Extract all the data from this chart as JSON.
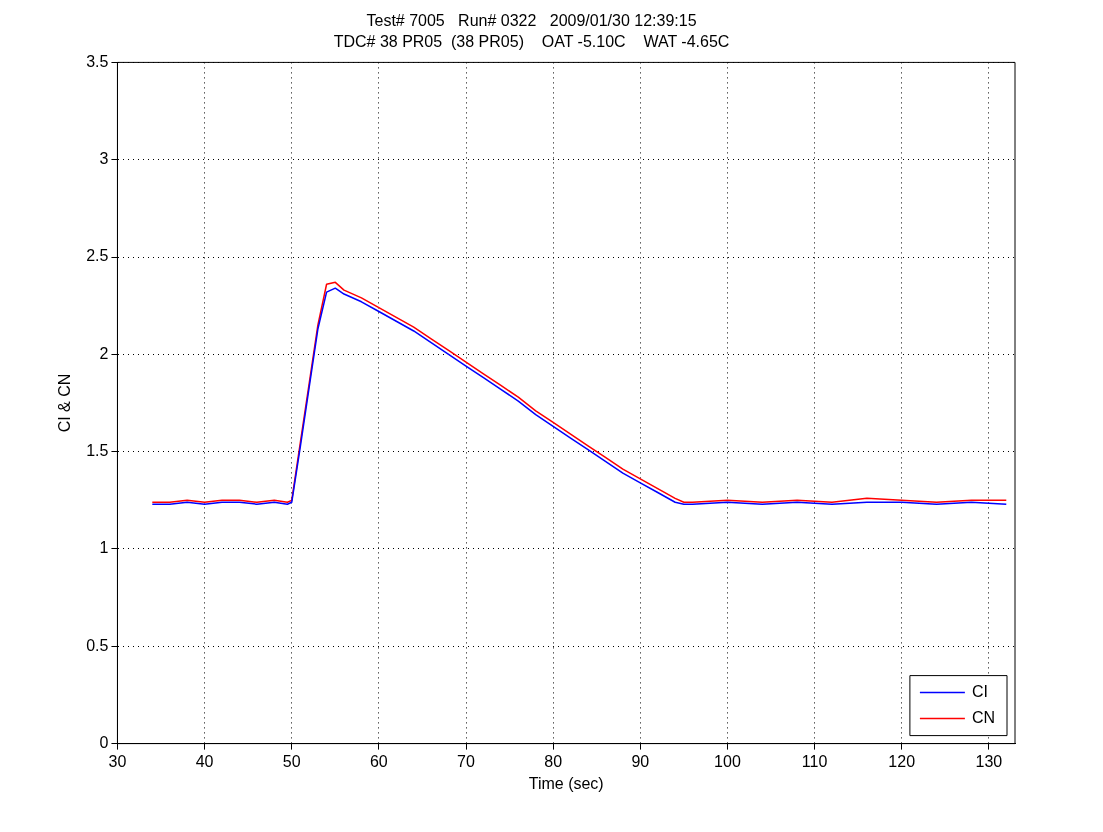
{
  "chart_data": {
    "type": "line",
    "title": "Test# 7005   Run# 0322   2009/01/30 12:39:15",
    "subtitle": "TDC# 38 PR05  (38 PR05)    OAT -5.10C    WAT -4.65C",
    "xlabel": "Time (sec)",
    "ylabel": "CI & CN",
    "x": [
      34,
      36,
      38,
      40,
      42,
      44,
      46,
      48,
      49.5,
      50,
      51,
      52,
      53,
      54,
      55,
      56,
      58,
      60,
      62,
      64,
      66,
      68,
      70,
      72,
      74,
      76,
      78,
      80,
      82,
      84,
      86,
      88,
      90,
      92,
      94,
      95,
      96,
      100,
      104,
      108,
      112,
      116,
      120,
      124,
      128,
      132
    ],
    "series": [
      {
        "name": "CI",
        "color": "#0000ff",
        "values": [
          1.23,
          1.23,
          1.24,
          1.23,
          1.24,
          1.24,
          1.23,
          1.24,
          1.23,
          1.24,
          1.53,
          1.83,
          2.13,
          2.32,
          2.34,
          2.31,
          2.27,
          2.22,
          2.17,
          2.12,
          2.06,
          2.0,
          1.94,
          1.88,
          1.82,
          1.76,
          1.69,
          1.63,
          1.57,
          1.51,
          1.45,
          1.39,
          1.34,
          1.29,
          1.24,
          1.23,
          1.23,
          1.24,
          1.23,
          1.24,
          1.23,
          1.24,
          1.24,
          1.23,
          1.24,
          1.23
        ]
      },
      {
        "name": "CN",
        "color": "#ff0000",
        "values": [
          1.24,
          1.24,
          1.25,
          1.24,
          1.25,
          1.25,
          1.24,
          1.25,
          1.24,
          1.25,
          1.55,
          1.85,
          2.15,
          2.36,
          2.37,
          2.33,
          2.29,
          2.24,
          2.19,
          2.14,
          2.08,
          2.02,
          1.96,
          1.9,
          1.84,
          1.78,
          1.71,
          1.65,
          1.59,
          1.53,
          1.47,
          1.41,
          1.36,
          1.31,
          1.26,
          1.24,
          1.24,
          1.25,
          1.24,
          1.25,
          1.24,
          1.26,
          1.25,
          1.24,
          1.25,
          1.25
        ]
      }
    ],
    "xlim": [
      30,
      133
    ],
    "xticks": [
      30,
      40,
      50,
      60,
      70,
      80,
      90,
      100,
      110,
      120,
      130
    ],
    "ylim": [
      0,
      3.5
    ],
    "yticks": [
      0,
      0.5,
      1,
      1.5,
      2,
      2.5,
      3,
      3.5
    ],
    "grid": true,
    "legend": "bottom right",
    "marker": "none",
    "line_style": "solid"
  }
}
